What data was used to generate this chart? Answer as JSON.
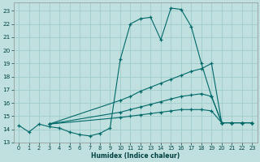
{
  "xlabel": "Humidex (Indice chaleur)",
  "bg_color": "#c0e0e0",
  "grid_color": "#a0cccc",
  "line_color": "#006868",
  "xlim": [
    -0.5,
    23.5
  ],
  "ylim": [
    13.0,
    23.6
  ],
  "yticks": [
    13,
    14,
    15,
    16,
    17,
    18,
    19,
    20,
    21,
    22,
    23
  ],
  "xticks": [
    0,
    1,
    2,
    3,
    4,
    5,
    6,
    7,
    8,
    9,
    10,
    11,
    12,
    13,
    14,
    15,
    16,
    17,
    18,
    19,
    20,
    21,
    22,
    23
  ],
  "curve_x": [
    0,
    1,
    2,
    3,
    4,
    5,
    6,
    7,
    8,
    9,
    10,
    11,
    12,
    13,
    14,
    15,
    16,
    17,
    18,
    19,
    20,
    21,
    22,
    23
  ],
  "curve_y": [
    14.3,
    13.8,
    14.4,
    14.2,
    14.1,
    13.8,
    13.6,
    13.5,
    13.7,
    14.1,
    19.3,
    22.0,
    22.4,
    22.5,
    20.8,
    23.2,
    23.1,
    21.8,
    19.0,
    16.5,
    14.5,
    14.5,
    14.5,
    14.5
  ],
  "line2_x": [
    3,
    10,
    11,
    12,
    13,
    14,
    15,
    16,
    17,
    18,
    19,
    20,
    21,
    22,
    23
  ],
  "line2_y": [
    14.4,
    16.2,
    16.5,
    16.9,
    17.2,
    17.5,
    17.8,
    18.1,
    18.4,
    18.6,
    19.0,
    14.5,
    14.5,
    14.5,
    14.5
  ],
  "line3_x": [
    3,
    10,
    11,
    12,
    13,
    14,
    15,
    16,
    17,
    18,
    19,
    20,
    21,
    22,
    23
  ],
  "line3_y": [
    14.4,
    15.3,
    15.5,
    15.7,
    15.9,
    16.1,
    16.3,
    16.5,
    16.6,
    16.7,
    16.5,
    14.5,
    14.5,
    14.5,
    14.5
  ],
  "line4_x": [
    3,
    10,
    11,
    12,
    13,
    14,
    15,
    16,
    17,
    18,
    19,
    20,
    21,
    22,
    23
  ],
  "line4_y": [
    14.4,
    14.9,
    15.0,
    15.1,
    15.2,
    15.3,
    15.4,
    15.5,
    15.5,
    15.5,
    15.4,
    14.5,
    14.5,
    14.5,
    14.5
  ]
}
